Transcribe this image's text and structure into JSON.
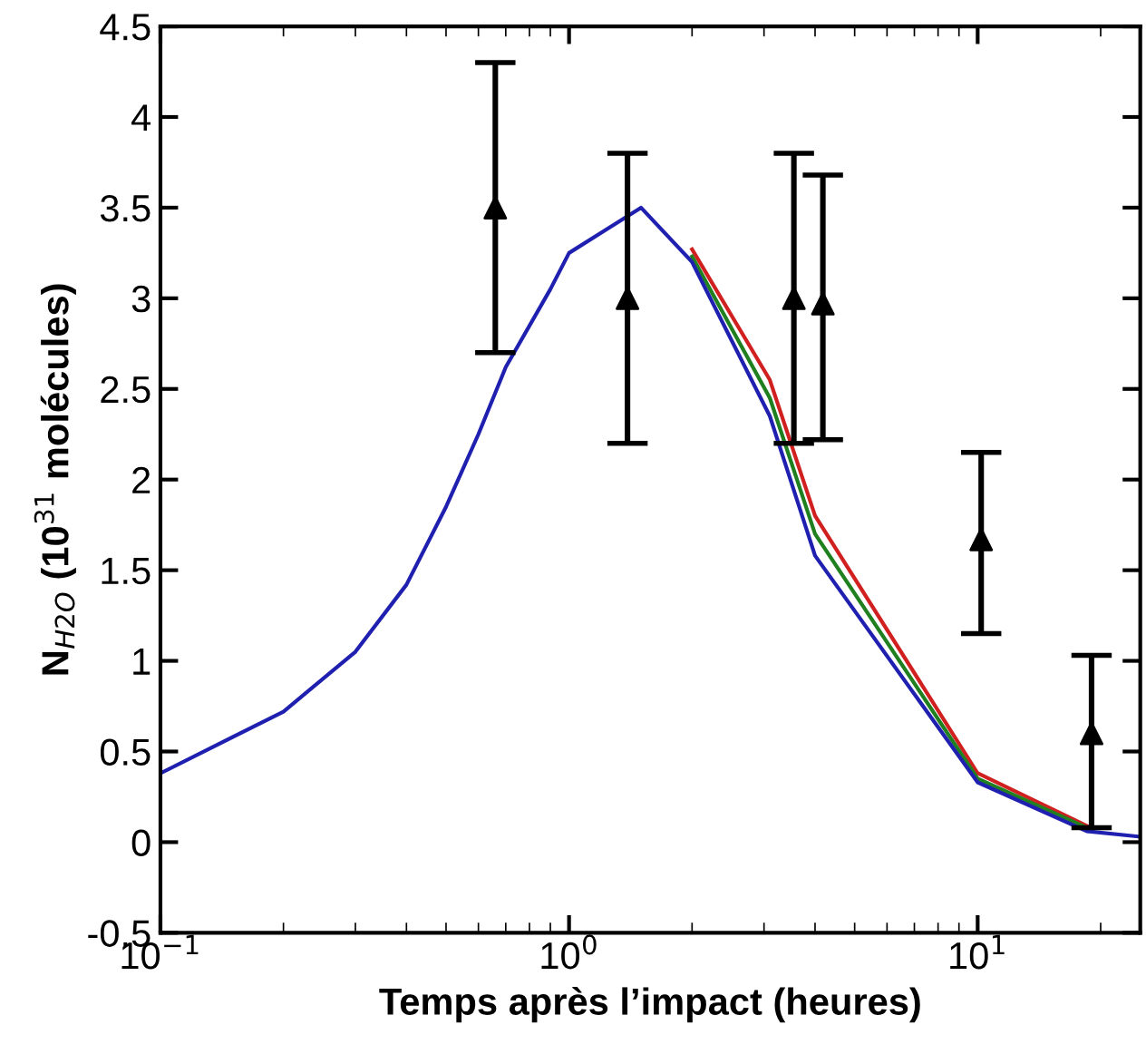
{
  "chart_data": {
    "type": "line",
    "xlabel": "Temps après l’impact (heures)",
    "ylabel": "N$_{H2O}$ (10$^{31}$ molécules)",
    "log": "x",
    "xlim": [
      0.1,
      25
    ],
    "xticks": [
      {
        "value": 0.1,
        "label": "10$^{−1}$"
      },
      {
        "value": 1,
        "label": "10$^{0}$"
      },
      {
        "value": 10,
        "label": "10$^{1}$"
      }
    ],
    "ylim": [
      -0.5,
      4.5
    ],
    "yticks": [
      -0.5,
      0,
      0.5,
      1,
      1.5,
      2,
      2.5,
      3,
      3.5,
      4,
      4.5
    ],
    "grid": false,
    "series": [
      {
        "color": "#d02020",
        "x": [
          2.0,
          3.1,
          4.0,
          10,
          18.5
        ],
        "values": [
          3.27,
          2.55,
          1.8,
          0.38,
          0.09
        ]
      },
      {
        "color": "#208020",
        "x": [
          2.0,
          3.1,
          4.0,
          10,
          18.5
        ],
        "values": [
          3.23,
          2.45,
          1.7,
          0.35,
          0.08
        ]
      },
      {
        "color": "#2020b0",
        "x": [
          0.1,
          0.2,
          0.3,
          0.4,
          0.5,
          0.6,
          0.7,
          0.9,
          1.0,
          1.5,
          2.0,
          3.1,
          4.0,
          10,
          18.5,
          25
        ],
        "values": [
          0.38,
          0.72,
          1.05,
          1.42,
          1.85,
          2.25,
          2.62,
          3.05,
          3.25,
          3.5,
          3.2,
          2.35,
          1.58,
          0.33,
          0.06,
          0.03
        ]
      },
      {
        "type": "scatter",
        "color": "#000000",
        "marker": "triangle",
        "x": [
          0.66,
          1.39,
          3.55,
          4.18,
          10.2,
          19.0
        ],
        "values": [
          3.5,
          3.0,
          3.0,
          2.97,
          1.67,
          0.6
        ],
        "errors": [
          [
            2.7,
            4.3
          ],
          [
            2.2,
            3.8
          ],
          [
            2.2,
            3.8
          ],
          [
            2.22,
            3.68
          ],
          [
            1.15,
            2.15
          ],
          [
            0.08,
            1.03
          ]
        ]
      }
    ]
  }
}
